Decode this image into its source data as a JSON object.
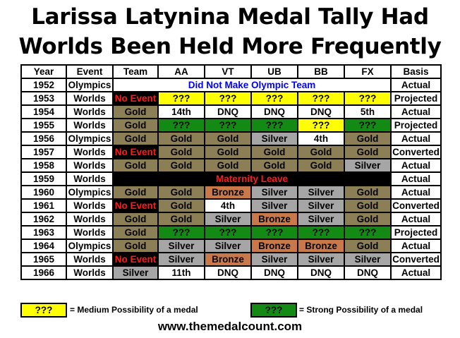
{
  "title_line1": "Larissa Latynina Medal Tally Had",
  "title_line2": "Worlds Been Held More Frequently",
  "headers": [
    "Year",
    "Event",
    "Team",
    "AA",
    "VT",
    "UB",
    "BB",
    "FX",
    "Basis"
  ],
  "rows": [
    {
      "year": "1952",
      "event": "Olympics",
      "span": "Did Not Make Olympic Team",
      "basis": "Actual"
    },
    {
      "year": "1953",
      "event": "Worlds",
      "team": "No Event",
      "aa": "???",
      "vt": "???",
      "ub": "???",
      "bb": "???",
      "fx": "???",
      "basis": "Projected"
    },
    {
      "year": "1954",
      "event": "Worlds",
      "team": "Gold",
      "aa": "14th",
      "vt": "DNQ",
      "ub": "DNQ",
      "bb": "DNQ",
      "fx": "5th",
      "basis": "Actual"
    },
    {
      "year": "1955",
      "event": "Worlds",
      "team": "Gold",
      "aa": "???",
      "vt": "???",
      "ub": "???",
      "bb": "???",
      "fx": "???",
      "basis": "Projected"
    },
    {
      "year": "1956",
      "event": "Olympics",
      "team": "Gold",
      "aa": "Gold",
      "vt": "Gold",
      "ub": "Silver",
      "bb": "4th",
      "fx": "Gold",
      "basis": "Actual"
    },
    {
      "year": "1957",
      "event": "Worlds",
      "team": "No Event",
      "aa": "Gold",
      "vt": "Gold",
      "ub": "Gold",
      "bb": "Gold",
      "fx": "Gold",
      "basis": "Converted"
    },
    {
      "year": "1958",
      "event": "Worlds",
      "team": "Gold",
      "aa": "Gold",
      "vt": "Gold",
      "ub": "Gold",
      "bb": "Gold",
      "fx": "Silver",
      "basis": "Actual"
    },
    {
      "year": "1959",
      "event": "Worlds",
      "span": "Maternity Leave",
      "basis": "Actual"
    },
    {
      "year": "1960",
      "event": "Olympics",
      "team": "Gold",
      "aa": "Gold",
      "vt": "Bronze",
      "ub": "Silver",
      "bb": "Silver",
      "fx": "Gold",
      "basis": "Actual"
    },
    {
      "year": "1961",
      "event": "Worlds",
      "team": "No Event",
      "aa": "Gold",
      "vt": "4th",
      "ub": "Silver",
      "bb": "Silver",
      "fx": "Gold",
      "basis": "Converted"
    },
    {
      "year": "1962",
      "event": "Worlds",
      "team": "Gold",
      "aa": "Gold",
      "vt": "Silver",
      "ub": "Bronze",
      "bb": "Silver",
      "fx": "Gold",
      "basis": "Actual"
    },
    {
      "year": "1963",
      "event": "Worlds",
      "team": "Gold",
      "aa": "???",
      "vt": "???",
      "ub": "???",
      "bb": "???",
      "fx": "???",
      "basis": "Projected"
    },
    {
      "year": "1964",
      "event": "Olympics",
      "team": "Gold",
      "aa": "Silver",
      "vt": "Silver",
      "ub": "Bronze",
      "bb": "Bronze",
      "fx": "Gold",
      "basis": "Actual"
    },
    {
      "year": "1965",
      "event": "Worlds",
      "team": "No Event",
      "aa": "Silver",
      "vt": "Bronze",
      "ub": "Silver",
      "bb": "Silver",
      "fx": "Silver",
      "basis": "Converted"
    },
    {
      "year": "1966",
      "event": "Worlds",
      "team": "Silver",
      "aa": "11th",
      "vt": "DNQ",
      "ub": "DNQ",
      "bb": "DNQ",
      "fx": "DNQ",
      "basis": "Actual"
    }
  ],
  "legend": {
    "yellow_symbol": "???",
    "yellow_text": "= Medium Possibility of a medal",
    "green_symbol": "???",
    "green_text": "= Strong Possibility of a medal"
  },
  "colors": {
    "gold": "#8c7e55",
    "silver": "#a6a6a6",
    "bronze": "#c87849",
    "medium_possibility": "#ffff00",
    "strong_possibility": "#138a13",
    "no_event": "#000000",
    "no_event_text": "#ff1a1a",
    "span_text_blue": "#0000ff"
  },
  "footer": "www.themedalcount.com"
}
